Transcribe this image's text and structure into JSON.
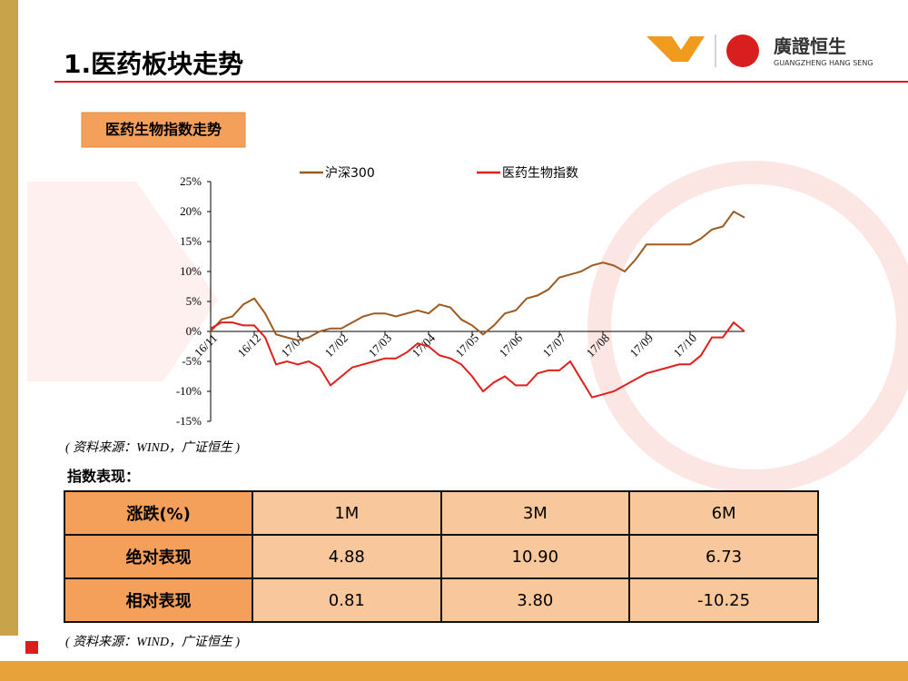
{
  "header": {
    "title": "1.医药板块走势",
    "brand_name": "廣證恒生",
    "brand_sub": "GUANGZHENG HANG SENG"
  },
  "section_label": "医药生物指数走势",
  "chart_data": {
    "type": "line",
    "categories": [
      "16/11",
      null,
      null,
      null,
      "16/12",
      null,
      null,
      null,
      "17/01",
      null,
      null,
      null,
      "17/02",
      null,
      null,
      null,
      "17/03",
      null,
      null,
      null,
      "17/04",
      null,
      null,
      null,
      "17/05",
      null,
      null,
      null,
      "17/06",
      null,
      null,
      null,
      "17/07",
      null,
      null,
      null,
      "17/08",
      null,
      null,
      null,
      "17/09",
      null,
      null,
      null,
      "17/10",
      null,
      null,
      null,
      null,
      null
    ],
    "series": [
      {
        "name": "沪深300",
        "color": "#9c5a1e",
        "values": [
          0,
          2,
          2.5,
          4.5,
          5.5,
          3,
          -0.5,
          -1,
          -1.5,
          -1,
          0,
          0.5,
          0.5,
          1.5,
          2.5,
          3,
          3,
          2.5,
          3,
          3.5,
          3,
          4.5,
          4,
          2,
          1,
          -0.5,
          1,
          3,
          3.5,
          5.5,
          6,
          7,
          9,
          9.5,
          10,
          11,
          11.5,
          11,
          10,
          12,
          14.5,
          14.5,
          14.5,
          14.5,
          14.5,
          15.5,
          17,
          17.5,
          20,
          19
        ]
      },
      {
        "name": "医药生物指数",
        "color": "#e0201a",
        "values": [
          0.5,
          1.5,
          1.5,
          1,
          1,
          -1,
          -5.5,
          -5,
          -5.5,
          -5,
          -6,
          -9,
          -7.5,
          -6,
          -5.5,
          -5,
          -4.5,
          -4.5,
          -3.5,
          -2,
          -2.5,
          -4,
          -4.5,
          -5.5,
          -7.5,
          -10,
          -8.5,
          -7.5,
          -9,
          -9,
          -7,
          -6.5,
          -6.5,
          -5,
          -8,
          -11,
          -10.5,
          -10,
          -9,
          -8,
          -7,
          -6.5,
          -6,
          -5.5,
          -5.5,
          -4,
          -1,
          -1,
          1.5,
          0
        ]
      }
    ],
    "ylim": [
      -15,
      25
    ],
    "yticks": [
      {
        "value": -15,
        "label": "-15%"
      },
      {
        "value": -10,
        "label": "-10%"
      },
      {
        "value": -5,
        "label": "-5%"
      },
      {
        "value": 0,
        "label": "0%"
      },
      {
        "value": 5,
        "label": "5%"
      },
      {
        "value": 10,
        "label": "10%"
      },
      {
        "value": 15,
        "label": "15%"
      },
      {
        "value": 20,
        "label": "20%"
      },
      {
        "value": 25,
        "label": "25%"
      }
    ],
    "legend": "top"
  },
  "source": "( 资料来源：WIND，广证恒生 )",
  "table_title": "指数表现：",
  "table": {
    "header": [
      "涨跌(%)",
      "1M",
      "3M",
      "6M"
    ],
    "rows": [
      [
        "绝对表现",
        "4.88",
        "10.90",
        "6.73"
      ],
      [
        "相对表现",
        "0.81",
        "3.80",
        "-10.25"
      ]
    ]
  },
  "table_source": "( 资料来源：WIND，广证恒生 )"
}
